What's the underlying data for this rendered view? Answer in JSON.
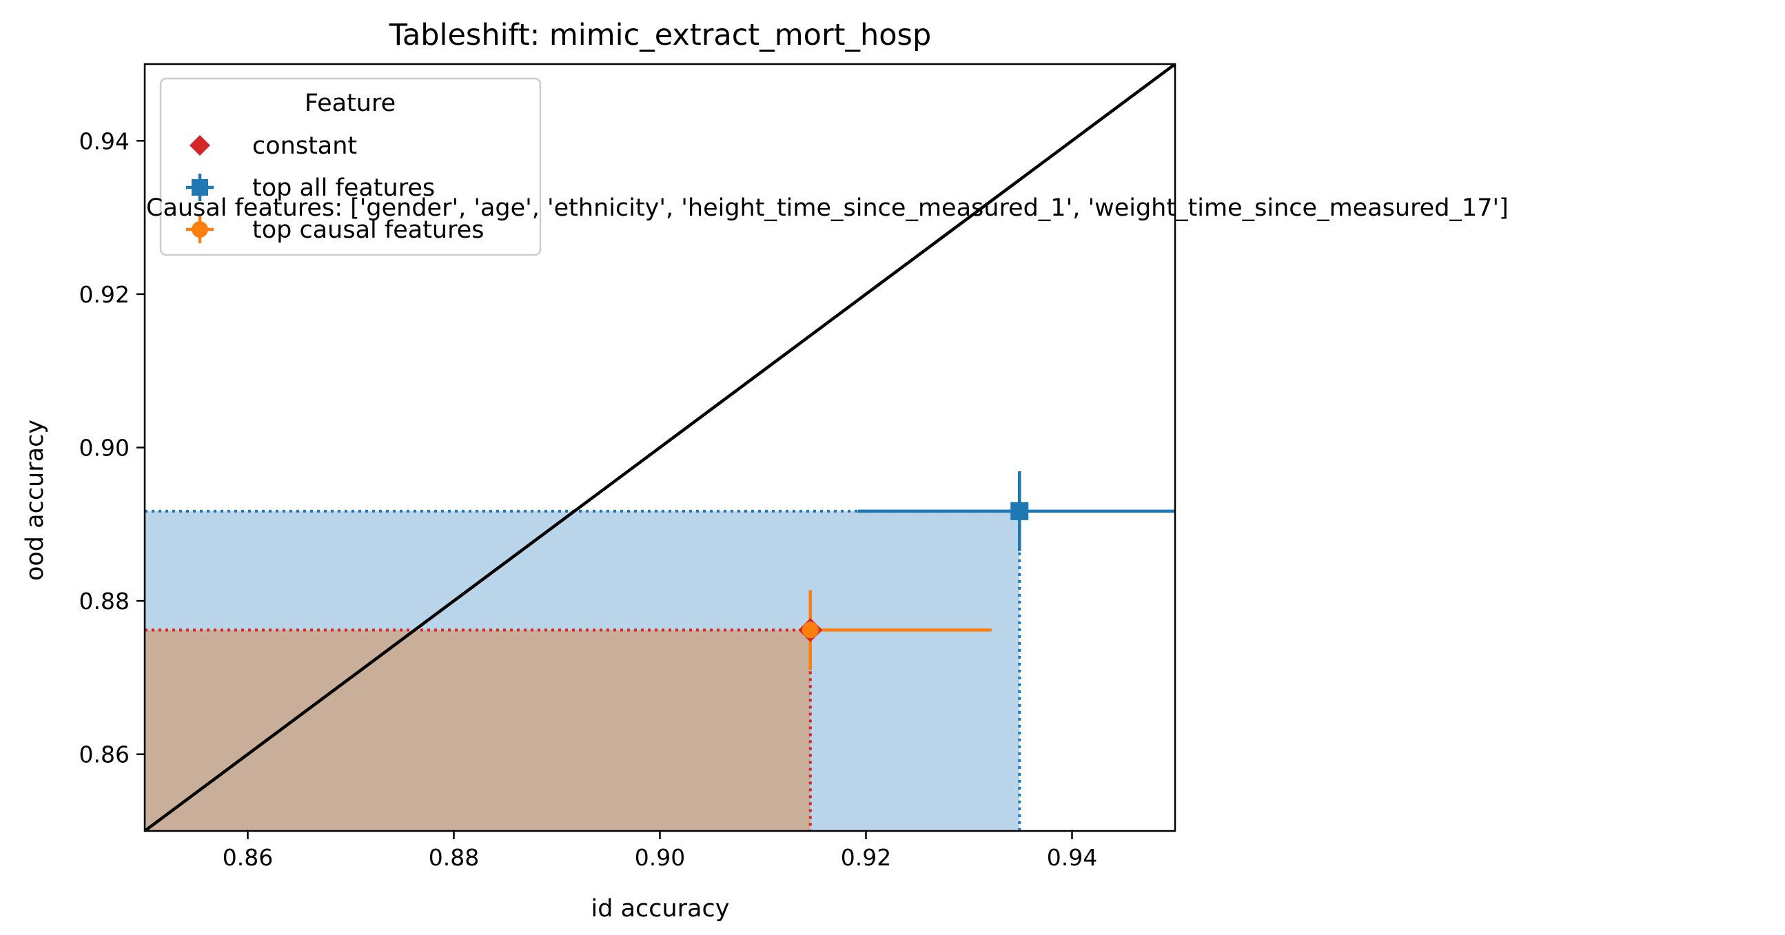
{
  "chart_data": {
    "type": "scatter",
    "title": "Tableshift: mimic_extract_mort_hosp",
    "xlabel": "id accuracy",
    "ylabel": "ood accuracy",
    "xlim": [
      0.85,
      0.95
    ],
    "ylim": [
      0.85,
      0.95
    ],
    "xticks": [
      "0.86",
      "0.88",
      "0.90",
      "0.92",
      "0.94"
    ],
    "yticks": [
      "0.86",
      "0.88",
      "0.90",
      "0.92",
      "0.94"
    ],
    "grid": false,
    "diagonal_line": true,
    "legend": {
      "title": "Feature",
      "placement": "top-left",
      "entries": [
        "constant",
        "top all features",
        "top causal features"
      ]
    },
    "annotation": "Causal features: ['gender', 'age', 'ethnicity', 'height_time_since_measured_1', 'weight_time_since_measured_17']",
    "series": [
      {
        "name": "constant",
        "marker": "diamond",
        "color": "#d62728",
        "x": 0.9146,
        "y": 0.8762,
        "xerr": [
          0,
          0
        ],
        "yerr": [
          0,
          0
        ],
        "shade": false
      },
      {
        "name": "top all features",
        "marker": "square",
        "color": "#1f77b4",
        "x": 0.9349,
        "y": 0.8917,
        "xerr": [
          0.0157,
          0.0151
        ],
        "yerr": [
          0.0052,
          0.0052
        ],
        "shade": true,
        "shade_color": "#bad4e9"
      },
      {
        "name": "top causal features",
        "marker": "circle",
        "color": "#ff7f0e",
        "x": 0.9146,
        "y": 0.8762,
        "xerr": [
          0,
          0.0176
        ],
        "yerr": [
          0.0052,
          0.0052
        ],
        "shade": true,
        "shade_color": "#c9ae99"
      }
    ]
  }
}
